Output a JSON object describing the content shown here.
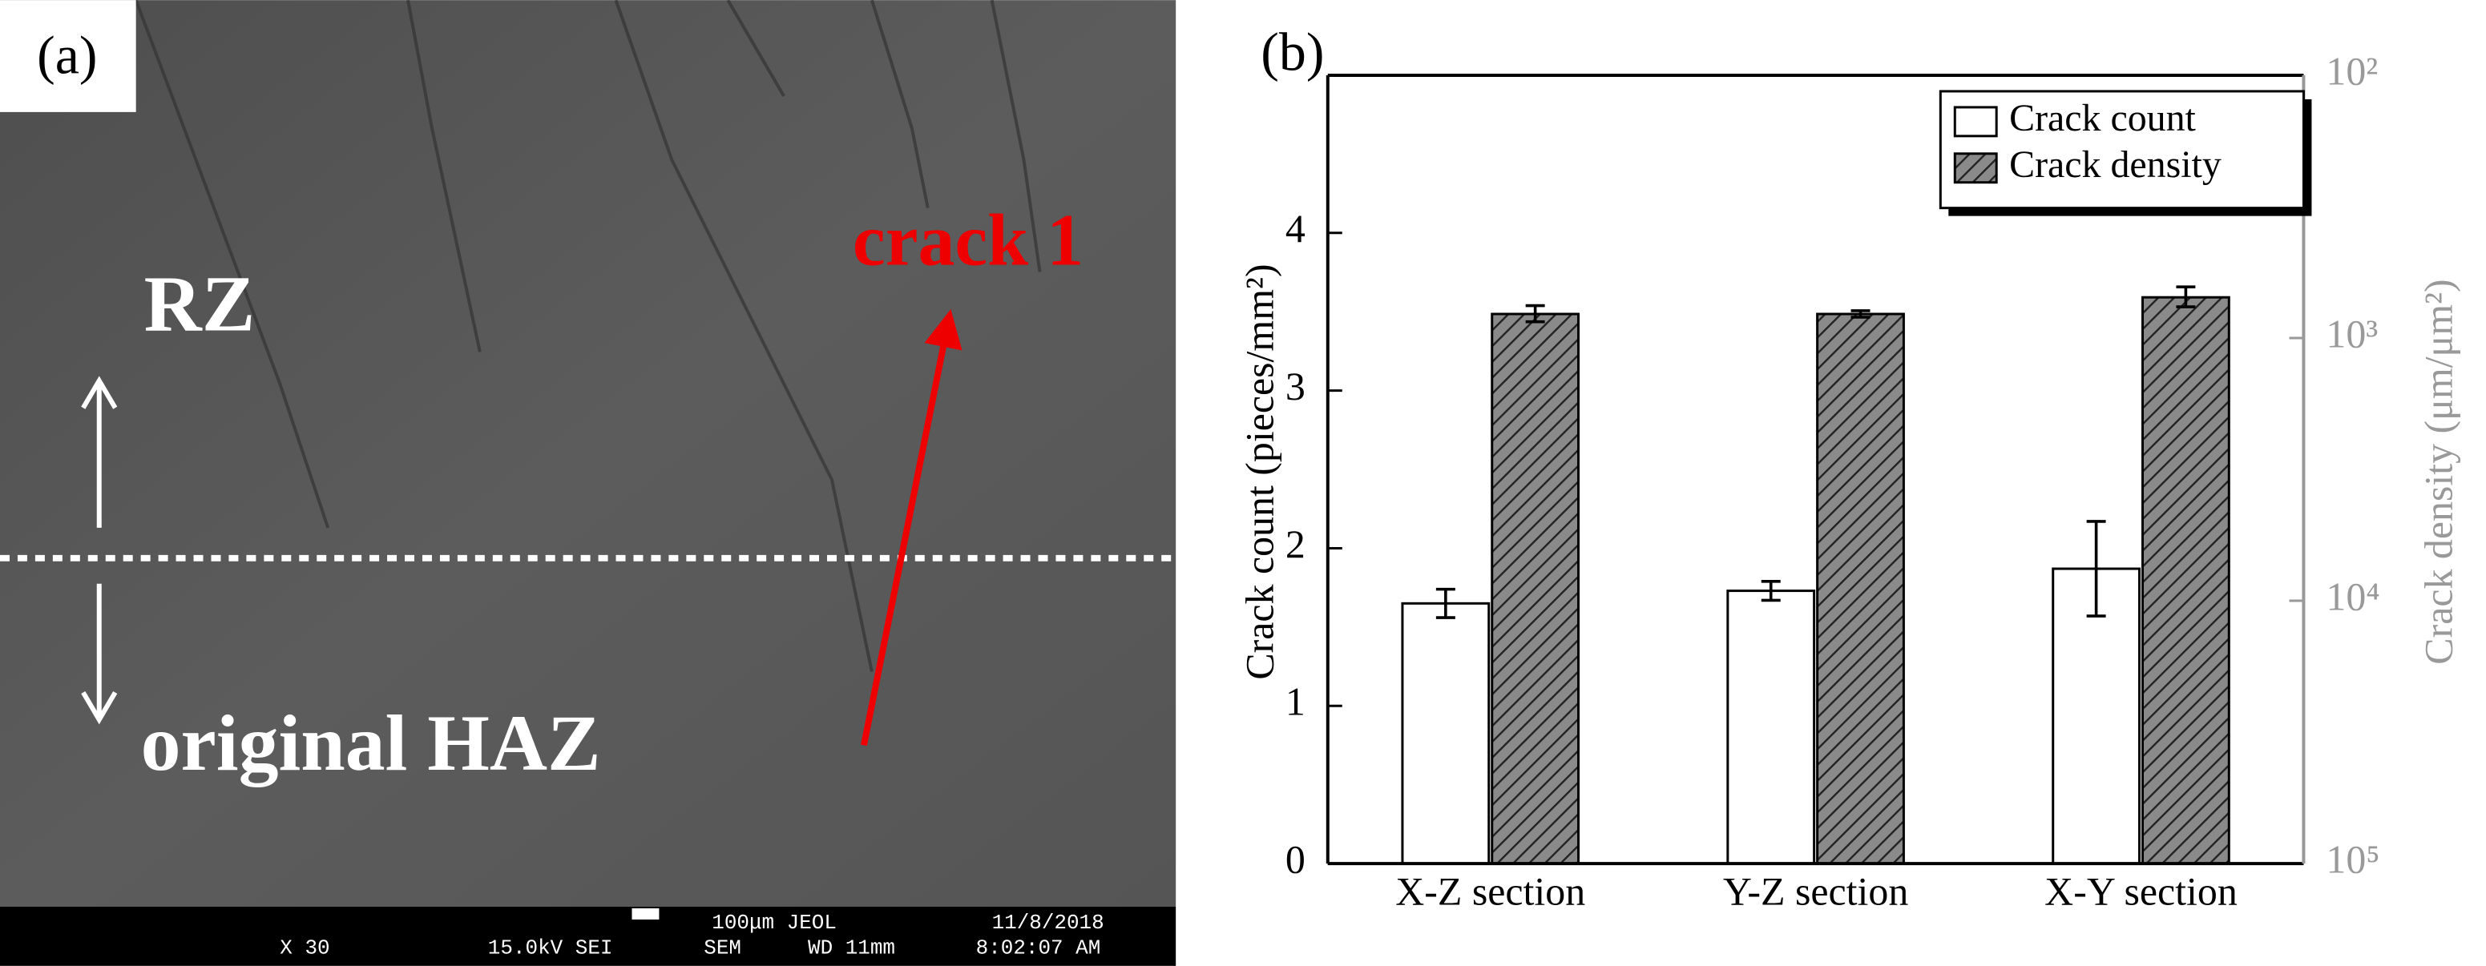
{
  "panel_a": {
    "label": "(a)",
    "annotations": {
      "rz": "RZ",
      "haz": "original HAZ",
      "crack": "crack 1"
    },
    "info_bar": [
      "X 30",
      "15.0kV SEI",
      "SEM",
      "100μm JEOL",
      "WD 11mm",
      "11/8/2018",
      "8:02:07 AM"
    ]
  },
  "chart_data": {
    "type": "bar",
    "panel_label": "(b)",
    "categories": [
      "X-Z section",
      "Y-Z section",
      "X-Y section"
    ],
    "ylabel": "Crack count (pieces/mm²)",
    "y2label": "Crack density (μm/μm²)",
    "ylim": [
      0,
      5
    ],
    "yticks": [
      0,
      1,
      2,
      3,
      4
    ],
    "y2lim": [
      100000,
      100
    ],
    "y2log": true,
    "y2ticks": [
      {
        "value": 100000,
        "label": "10⁵"
      },
      {
        "value": 10000,
        "label": "10⁴"
      },
      {
        "value": 1000,
        "label": "10³"
      },
      {
        "value": 100,
        "label": "10²"
      }
    ],
    "legend": "upper right",
    "series": [
      {
        "name": "Crack count",
        "color": "#ffffff",
        "values": [
          1.65,
          1.73,
          1.87
        ],
        "errors": [
          0.09,
          0.06,
          0.3
        ]
      },
      {
        "name": "Crack density",
        "color": "#555555",
        "hatch": true,
        "axis": "y2",
        "values": [
          810,
          810,
          700
        ],
        "errors": [
          57,
          23,
          61
        ]
      }
    ]
  }
}
